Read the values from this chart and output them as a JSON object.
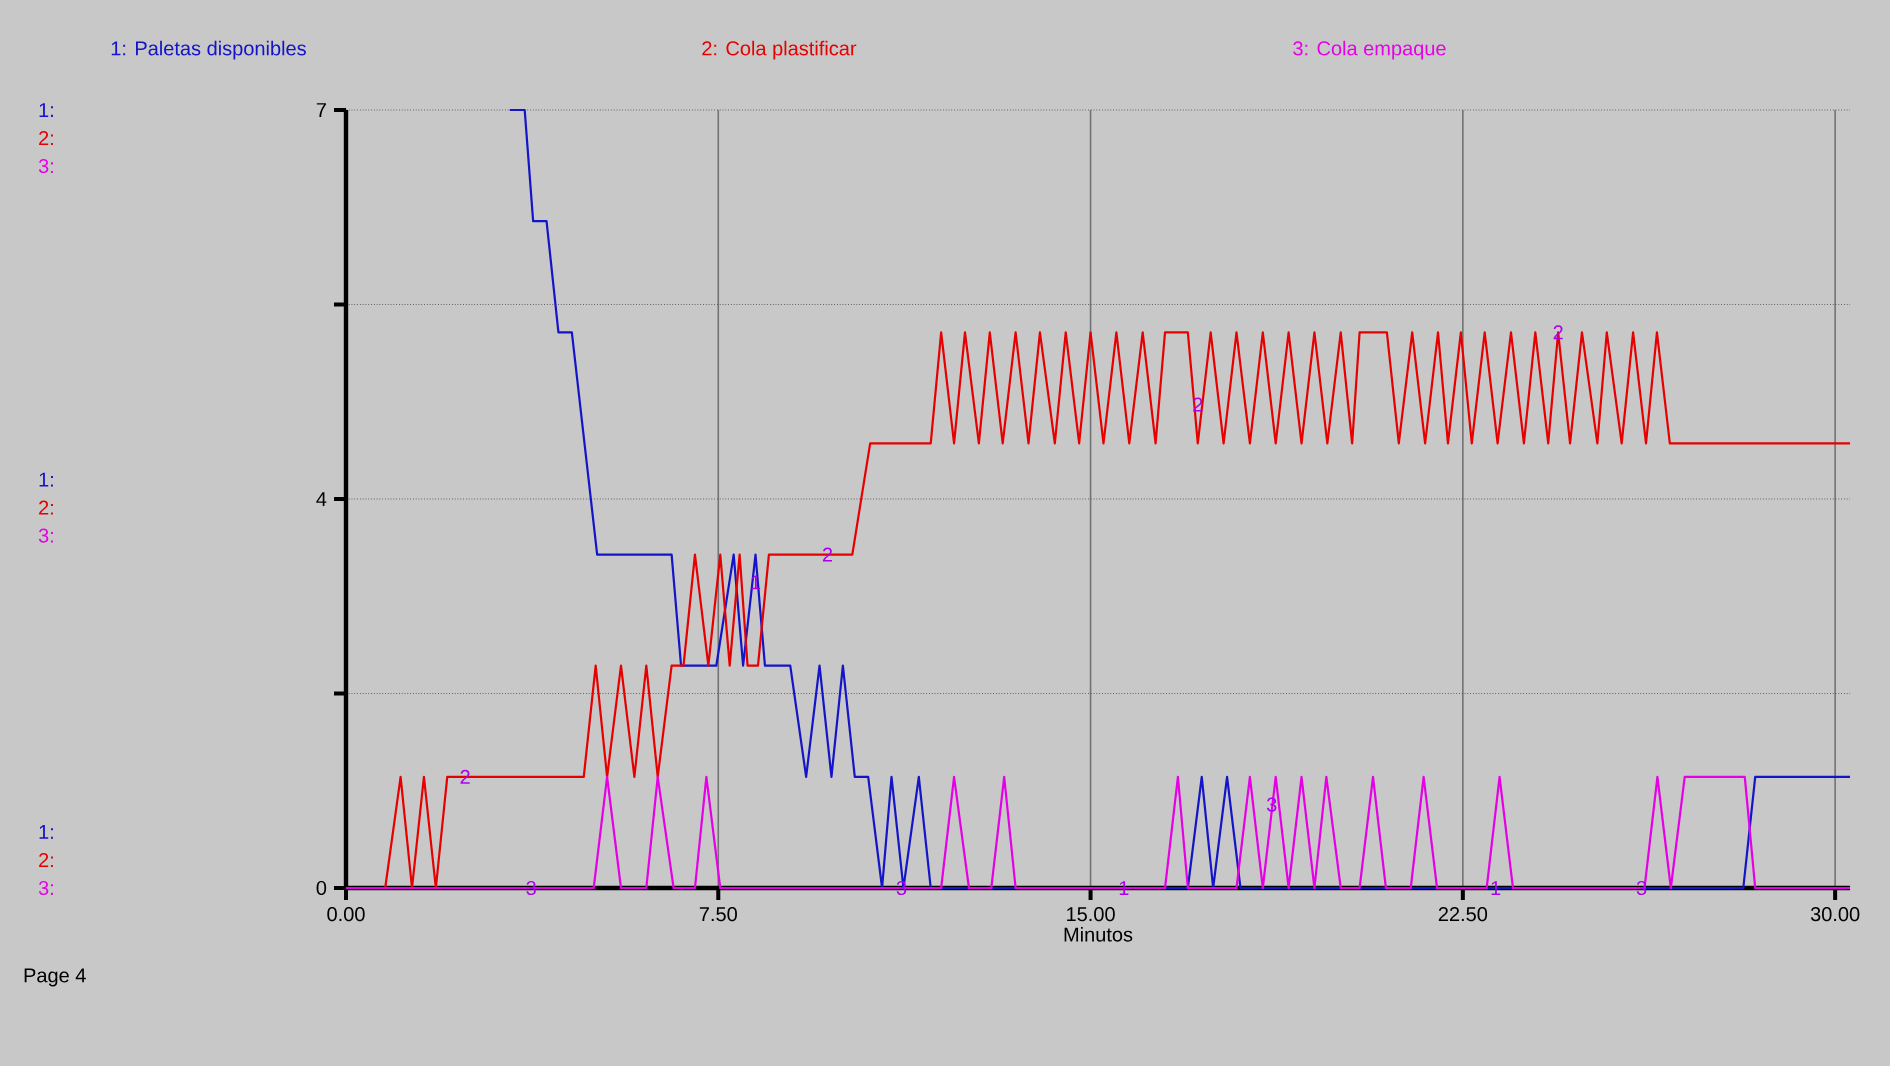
{
  "chart_data": {
    "type": "line",
    "xlabel": "Minutos",
    "xlim": [
      0,
      30.3
    ],
    "ylim": [
      0,
      7
    ],
    "xticks": [
      {
        "value": 0,
        "label": "0.00"
      },
      {
        "value": 7.5,
        "label": "7.50"
      },
      {
        "value": 15,
        "label": "15.00"
      },
      {
        "value": 22.5,
        "label": "22.50"
      },
      {
        "value": 30,
        "label": "30.00"
      }
    ],
    "yticks": [
      0,
      {
        "value": 1.75,
        "label": null
      },
      {
        "value": 3.5,
        "label": "4"
      },
      {
        "value": 5.25,
        "label": null
      },
      7
    ],
    "grid": true,
    "legend": "top",
    "series": [
      {
        "name": "1: Paletas disponibles",
        "color": "#1414c8",
        "x": [
          3.3,
          3.6,
          3.77,
          4.04,
          4.28,
          4.55,
          5.06,
          6.56,
          6.75,
          7.46,
          7.81,
          8.0,
          8.25,
          8.44,
          8.95,
          9.27,
          9.54,
          9.78,
          10.01,
          10.25,
          10.52,
          10.8,
          10.99,
          11.23,
          11.54,
          11.78,
          16.96,
          17.24,
          17.47,
          17.75,
          18.02,
          28.15,
          28.39,
          30.3
        ],
        "values": [
          7,
          7,
          6,
          6,
          5,
          5,
          3,
          3,
          2,
          2,
          3,
          2,
          3,
          2,
          2,
          1,
          2,
          1,
          2,
          1,
          1,
          0,
          1,
          0,
          1,
          0,
          0,
          1,
          0,
          1,
          0,
          0,
          1,
          1
        ]
      },
      {
        "name": "2: Cola plastificar",
        "color": "#e60000",
        "x": [
          0,
          0.79,
          1.1,
          1.33,
          1.57,
          1.81,
          2.04,
          4.79,
          5.03,
          5.26,
          5.54,
          5.81,
          6.05,
          6.28,
          6.56,
          6.8,
          7.03,
          7.3,
          7.54,
          7.73,
          7.93,
          8.09,
          8.3,
          8.52,
          10.2,
          10.56,
          11.78,
          11.99,
          12.25,
          12.47,
          12.75,
          12.97,
          13.23,
          13.49,
          13.75,
          13.98,
          14.28,
          14.5,
          14.77,
          15.0,
          15.26,
          15.52,
          15.78,
          16.05,
          16.31,
          16.5,
          16.96,
          17.16,
          17.42,
          17.68,
          17.94,
          18.21,
          18.47,
          18.73,
          18.99,
          19.25,
          19.51,
          19.77,
          20.04,
          20.27,
          20.42,
          20.97,
          21.21,
          21.48,
          21.74,
          22.0,
          22.2,
          22.46,
          22.68,
          22.94,
          23.2,
          23.47,
          23.73,
          23.96,
          24.22,
          24.42,
          24.66,
          24.9,
          25.21,
          25.4,
          25.7,
          25.93,
          26.19,
          26.41,
          26.67,
          30.3
        ],
        "values": [
          0,
          0,
          1,
          0,
          1,
          0,
          1,
          1,
          2,
          1,
          2,
          1,
          2,
          1,
          2,
          2,
          3,
          2,
          3,
          2,
          3,
          2,
          2,
          3,
          3,
          4,
          4,
          5,
          4,
          5,
          4,
          5,
          4,
          5,
          4,
          5,
          4,
          5,
          4,
          5,
          4,
          5,
          4,
          5,
          4,
          5,
          5,
          4,
          5,
          4,
          5,
          4,
          5,
          4,
          5,
          4,
          5,
          4,
          5,
          4,
          5,
          5,
          4,
          5,
          4,
          5,
          4,
          5,
          4,
          5,
          4,
          5,
          4,
          5,
          4,
          5,
          4,
          5,
          4,
          5,
          4,
          5,
          4,
          5,
          4,
          4
        ]
      },
      {
        "name": "3: Cola empaque",
        "color": "#e600e6",
        "x": [
          0,
          4.99,
          5.26,
          5.54,
          6.05,
          6.28,
          6.6,
          7.03,
          7.26,
          7.54,
          11.99,
          12.25,
          12.55,
          13.0,
          13.26,
          13.49,
          16.5,
          16.76,
          16.96,
          17.94,
          18.21,
          18.47,
          18.73,
          18.99,
          19.25,
          19.51,
          19.75,
          20.04,
          20.42,
          20.69,
          20.95,
          21.45,
          21.71,
          21.98,
          22.98,
          23.24,
          23.51,
          26.16,
          26.42,
          26.69,
          26.97,
          28.18,
          28.39,
          30.3
        ],
        "values": [
          0,
          0,
          1,
          0,
          0,
          1,
          0,
          0,
          1,
          0,
          0,
          1,
          0,
          0,
          1,
          0,
          0,
          1,
          0,
          0,
          1,
          0,
          1,
          0,
          1,
          0,
          1,
          0,
          0,
          1,
          0,
          0,
          1,
          0,
          0,
          1,
          0,
          0,
          1,
          0,
          1,
          1,
          0,
          0
        ]
      }
    ],
    "annotations": [
      {
        "text": "2",
        "x": 2.4,
        "y": 1
      },
      {
        "text": "3",
        "x": 3.73,
        "y": 0
      },
      {
        "text": "1",
        "x": 8.25,
        "y": 2.75
      },
      {
        "text": "2",
        "x": 9.7,
        "y": 3
      },
      {
        "text": "3",
        "x": 11.19,
        "y": 0
      },
      {
        "text": "1",
        "x": 15.67,
        "y": 0
      },
      {
        "text": "2",
        "x": 17.16,
        "y": 4.35
      },
      {
        "text": "3",
        "x": 18.65,
        "y": 0.75
      },
      {
        "text": "1",
        "x": 23.16,
        "y": 0
      },
      {
        "text": "2",
        "x": 24.42,
        "y": 5
      },
      {
        "text": "3",
        "x": 26.1,
        "y": 0
      },
      "1:",
      "2:",
      "3:",
      "1:",
      "2:",
      "3:",
      "1:",
      "2:",
      "3:",
      "Page 4"
    ]
  }
}
